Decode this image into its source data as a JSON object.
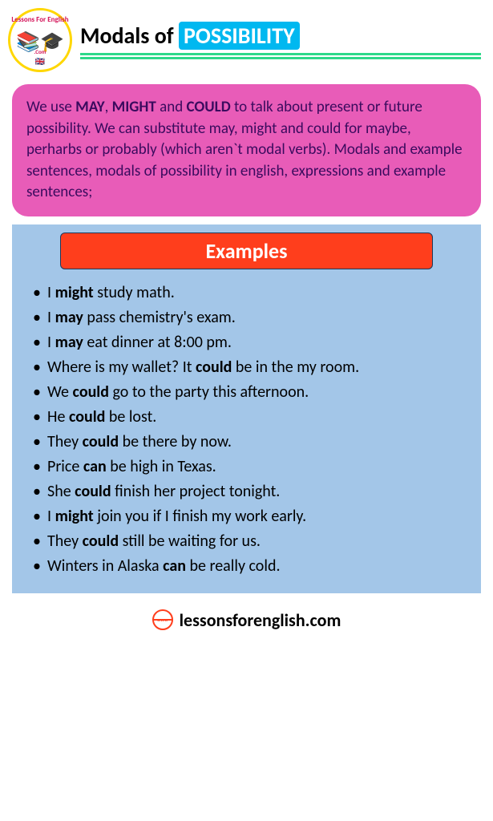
{
  "logo": {
    "top_text": "Lessons For English",
    "bottom_text": ".Com",
    "books_emoji": "📚🎓",
    "flag_emoji": "🇬🇧"
  },
  "title": {
    "prefix": "Modals of ",
    "highlight": "POSSIBILITY"
  },
  "intro": {
    "parts": [
      {
        "t": "We use ",
        "b": false
      },
      {
        "t": "MAY",
        "b": true
      },
      {
        "t": ", ",
        "b": false
      },
      {
        "t": "MIGHT",
        "b": true
      },
      {
        "t": " and ",
        "b": false
      },
      {
        "t": "COULD",
        "b": true
      },
      {
        "t": " to talk  about present or future possibility. We can substitute may, might and could for maybe, perharbs or probably (which aren`t modal verbs). Modals and example sentences, modals of possibility in english, expressions and example sentences;",
        "b": false
      }
    ]
  },
  "examples": {
    "header": "Examples",
    "items": [
      [
        {
          "t": "I ",
          "b": false
        },
        {
          "t": "might",
          "b": true
        },
        {
          "t": " study math.",
          "b": false
        }
      ],
      [
        {
          "t": "I ",
          "b": false
        },
        {
          "t": "may",
          "b": true
        },
        {
          "t": " pass chemistry's exam.",
          "b": false
        }
      ],
      [
        {
          "t": "I ",
          "b": false
        },
        {
          "t": "may",
          "b": true
        },
        {
          "t": " eat dinner at 8:00 pm.",
          "b": false
        }
      ],
      [
        {
          "t": "Where is my wallet? It ",
          "b": false
        },
        {
          "t": "could",
          "b": true
        },
        {
          "t": " be in the my room.",
          "b": false
        }
      ],
      [
        {
          "t": "We ",
          "b": false
        },
        {
          "t": "could",
          "b": true
        },
        {
          "t": " go to the party this afternoon.",
          "b": false
        }
      ],
      [
        {
          "t": "He ",
          "b": false
        },
        {
          "t": "could",
          "b": true
        },
        {
          "t": " be lost.",
          "b": false
        }
      ],
      [
        {
          "t": "They ",
          "b": false
        },
        {
          "t": "could",
          "b": true
        },
        {
          "t": " be there by now.",
          "b": false
        }
      ],
      [
        {
          "t": "Price ",
          "b": false
        },
        {
          "t": "can",
          "b": true
        },
        {
          "t": " be high in Texas.",
          "b": false
        }
      ],
      [
        {
          "t": "She ",
          "b": false
        },
        {
          "t": "could",
          "b": true
        },
        {
          "t": " finish her project tonight.",
          "b": false
        }
      ],
      [
        {
          "t": "I ",
          "b": false
        },
        {
          "t": "might",
          "b": true
        },
        {
          "t": " join you if I finish my work early.",
          "b": false
        }
      ],
      [
        {
          "t": "They ",
          "b": false
        },
        {
          "t": "could",
          "b": true
        },
        {
          "t": " still be waiting for us.",
          "b": false
        }
      ],
      [
        {
          "t": "Winters in Alaska ",
          "b": false
        },
        {
          "t": "can",
          "b": true
        },
        {
          "t": " be really cold.",
          "b": false
        }
      ]
    ]
  },
  "footer": {
    "url": "lessonsforenglish.com"
  },
  "colors": {
    "header_highlight_bg": "#00b8f0",
    "underline": "#2dd88a",
    "intro_bg": "#e85cb8",
    "intro_text": "#3a0b5e",
    "examples_bg": "#a3c6e8",
    "examples_header_bg": "#ff3e1c",
    "logo_border": "#ffd700",
    "footer_icon": "#ff3e1c"
  }
}
